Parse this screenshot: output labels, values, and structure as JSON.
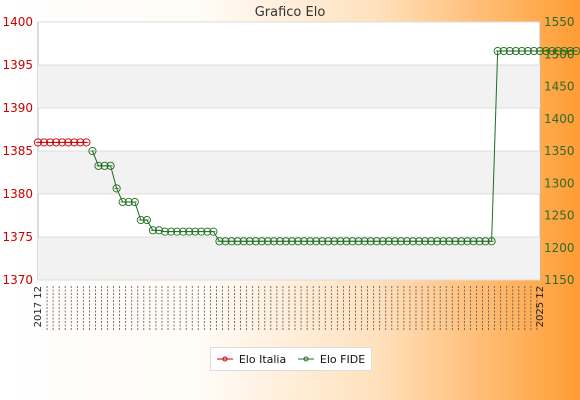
{
  "chart_data": {
    "type": "line",
    "title": "Grafico Elo",
    "ylim_left": [
      1370,
      1400
    ],
    "ylim_right": [
      1150,
      1550
    ],
    "yticks_left": [
      1370,
      1375,
      1380,
      1385,
      1390,
      1395,
      1400
    ],
    "yticks_right": [
      1150,
      1200,
      1250,
      1300,
      1350,
      1400,
      1450,
      1500,
      1550
    ],
    "grid": true,
    "legend_position": "bottom-center",
    "x_count": 84,
    "x_first_label": "2017 12",
    "x_last_label": "2025 12",
    "series": [
      {
        "name": "Elo Italia",
        "axis": "left",
        "color": "#cc0000",
        "values": [
          1386,
          1386,
          1386,
          1386,
          1386,
          1386,
          1386,
          1386,
          1386
        ]
      },
      {
        "name": "Elo FIDE",
        "axis": "right",
        "color": "#1e6e1e",
        "values": [
          1350,
          1327,
          1327,
          1327,
          1292,
          1271,
          1271,
          1271,
          1243,
          1243,
          1227,
          1227,
          1225,
          1225,
          1225,
          1225,
          1225,
          1225,
          1225,
          1225,
          1225,
          1210,
          1210,
          1210,
          1210,
          1210,
          1210,
          1210,
          1210,
          1210,
          1210,
          1210,
          1210,
          1210,
          1210,
          1210,
          1210,
          1210,
          1210,
          1210,
          1210,
          1210,
          1210,
          1210,
          1210,
          1210,
          1210,
          1210,
          1210,
          1210,
          1210,
          1210,
          1210,
          1210,
          1210,
          1210,
          1210,
          1210,
          1210,
          1210,
          1210,
          1210,
          1210,
          1210,
          1210,
          1210,
          1210,
          1505,
          1505,
          1505,
          1505,
          1505,
          1505,
          1505,
          1505,
          1505,
          1505,
          1505,
          1505,
          1505,
          1505
        ]
      }
    ]
  }
}
